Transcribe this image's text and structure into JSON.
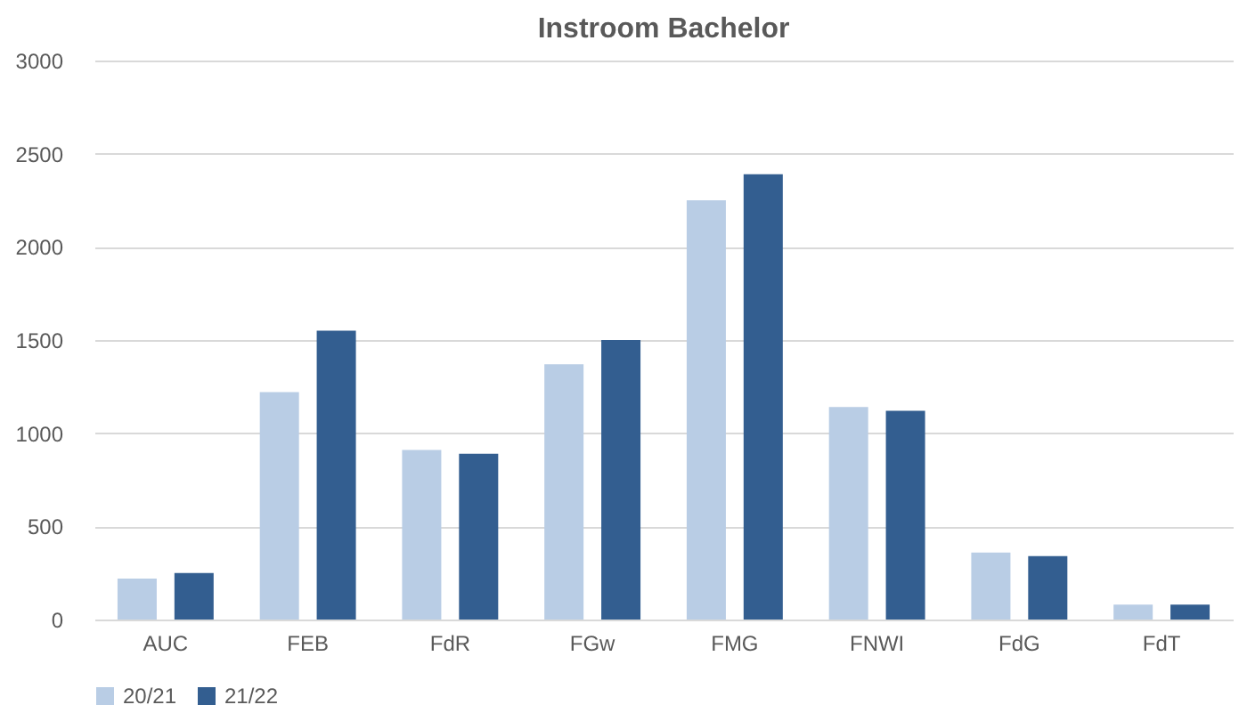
{
  "chart_data": {
    "type": "bar",
    "title": "Instroom Bachelor",
    "categories": [
      "AUC",
      "FEB",
      "FdR",
      "FGw",
      "FMG",
      "FNWI",
      "FdG",
      "FdT"
    ],
    "series": [
      {
        "name": "20/21",
        "color": "#b9cde5",
        "values": [
          220,
          1220,
          910,
          1370,
          2250,
          1140,
          360,
          80
        ]
      },
      {
        "name": "21/22",
        "color": "#335e90",
        "values": [
          250,
          1550,
          890,
          1500,
          2390,
          1120,
          340,
          80
        ]
      }
    ],
    "ylim": [
      0,
      3000
    ],
    "yticks": [
      0,
      500,
      1000,
      1500,
      2000,
      2500,
      3000
    ],
    "grid": "y",
    "legend": "bottom"
  }
}
